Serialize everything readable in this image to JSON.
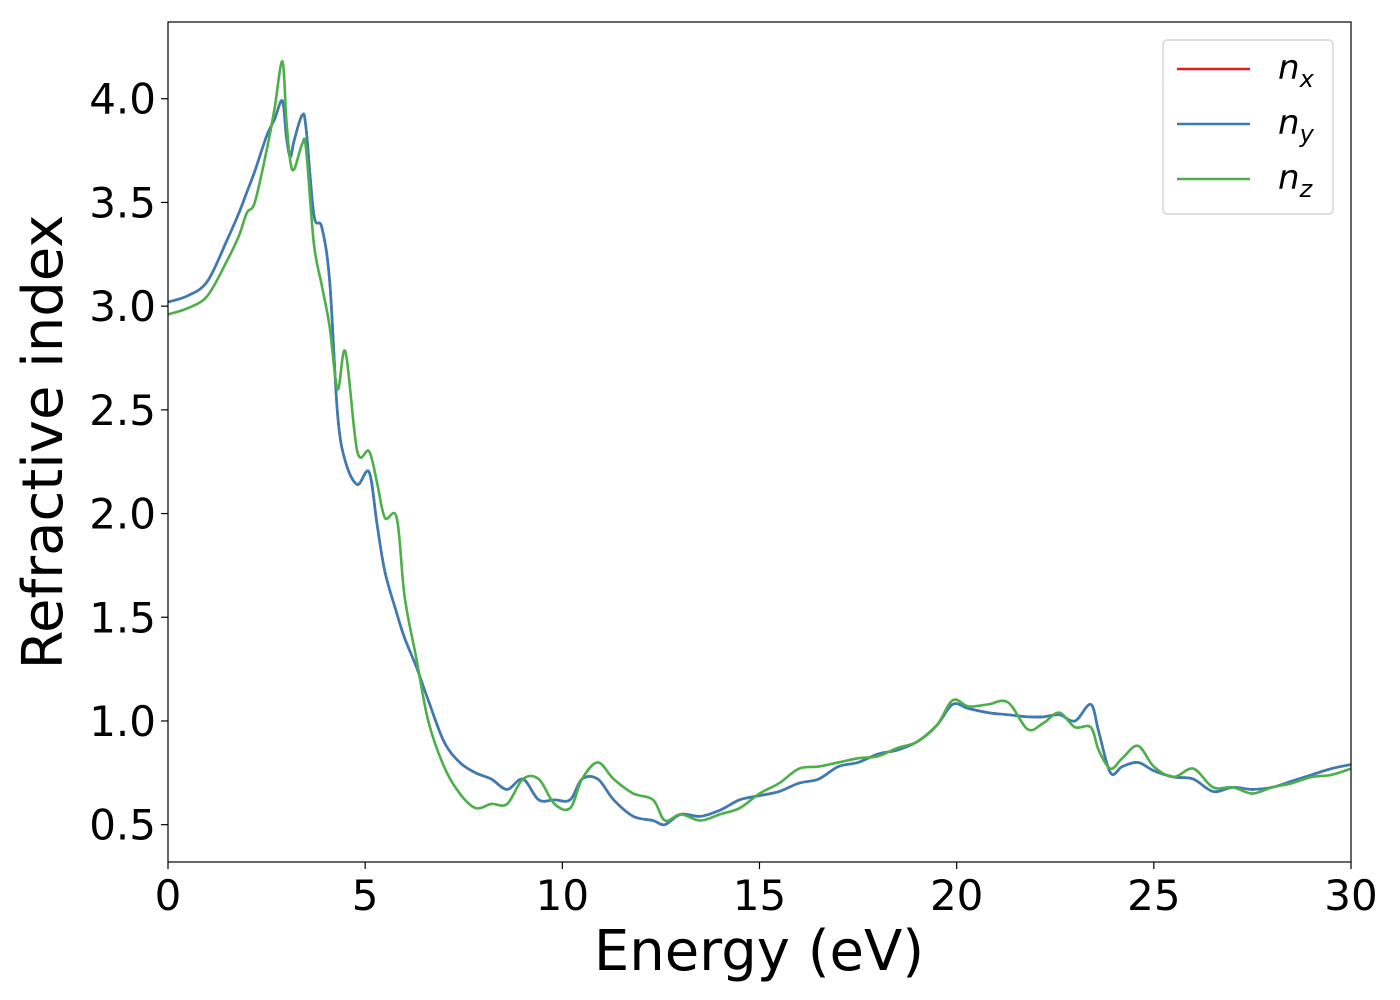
{
  "chart_data": {
    "type": "line",
    "xlabel": "Energy (eV)",
    "ylabel": "Refractive index",
    "xlim": [
      0,
      30
    ],
    "ylim": [
      0.32,
      4.37
    ],
    "xticks": [
      0,
      5,
      10,
      15,
      20,
      25,
      30
    ],
    "xtick_labels": [
      "0",
      "5",
      "10",
      "15",
      "20",
      "25",
      "30"
    ],
    "yticks": [
      0.5,
      1.0,
      1.5,
      2.0,
      2.5,
      3.0,
      3.5,
      4.0
    ],
    "ytick_labels": [
      "0.5",
      "1.0",
      "1.5",
      "2.0",
      "2.5",
      "3.0",
      "3.5",
      "4.0"
    ],
    "grid": false,
    "legend_position": "top-right",
    "series": [
      {
        "name": "n_x",
        "legend_base": "n",
        "legend_sub": "x",
        "color": "#e41a1c",
        "x": [
          0,
          0.5,
          1.0,
          1.5,
          1.8,
          2.0,
          2.2,
          2.5,
          2.7,
          2.9,
          3.0,
          3.1,
          3.2,
          3.4,
          3.5,
          3.7,
          3.9,
          4.1,
          4.3,
          4.5,
          4.8,
          5.1,
          5.3,
          5.5,
          5.8,
          6.0,
          6.3,
          6.6,
          7.0,
          7.4,
          7.8,
          8.2,
          8.6,
          9.0,
          9.4,
          9.8,
          10.2,
          10.5,
          10.9,
          11.3,
          11.8,
          12.3,
          12.6,
          13.0,
          13.5,
          14.0,
          14.5,
          15.0,
          15.5,
          16.0,
          16.5,
          17.0,
          17.5,
          18.0,
          18.5,
          19.0,
          19.5,
          19.9,
          20.3,
          20.8,
          21.3,
          21.8,
          22.2,
          22.6,
          23.0,
          23.4,
          23.6,
          23.9,
          24.2,
          24.6,
          25.0,
          25.5,
          26.0,
          26.5,
          27.0,
          27.5,
          28.0,
          28.5,
          29.0,
          29.5,
          30.0
        ],
        "values": [
          3.02,
          3.05,
          3.12,
          3.32,
          3.45,
          3.55,
          3.65,
          3.82,
          3.9,
          3.99,
          3.82,
          3.72,
          3.8,
          3.92,
          3.86,
          3.44,
          3.38,
          3.12,
          2.48,
          2.25,
          2.14,
          2.2,
          1.95,
          1.72,
          1.52,
          1.4,
          1.26,
          1.1,
          0.9,
          0.8,
          0.75,
          0.72,
          0.67,
          0.72,
          0.62,
          0.62,
          0.62,
          0.72,
          0.72,
          0.62,
          0.54,
          0.52,
          0.5,
          0.55,
          0.54,
          0.57,
          0.62,
          0.64,
          0.66,
          0.7,
          0.72,
          0.78,
          0.8,
          0.84,
          0.86,
          0.9,
          0.98,
          1.08,
          1.06,
          1.04,
          1.03,
          1.02,
          1.02,
          1.03,
          1.0,
          1.08,
          0.95,
          0.75,
          0.78,
          0.8,
          0.76,
          0.73,
          0.72,
          0.66,
          0.68,
          0.67,
          0.68,
          0.71,
          0.74,
          0.77,
          0.79
        ]
      },
      {
        "name": "n_y",
        "legend_base": "n",
        "legend_sub": "y",
        "color": "#377eb8",
        "x": [
          0,
          0.5,
          1.0,
          1.5,
          1.8,
          2.0,
          2.2,
          2.5,
          2.7,
          2.9,
          3.0,
          3.1,
          3.2,
          3.4,
          3.5,
          3.7,
          3.9,
          4.1,
          4.3,
          4.5,
          4.8,
          5.1,
          5.3,
          5.5,
          5.8,
          6.0,
          6.3,
          6.6,
          7.0,
          7.4,
          7.8,
          8.2,
          8.6,
          9.0,
          9.4,
          9.8,
          10.2,
          10.5,
          10.9,
          11.3,
          11.8,
          12.3,
          12.6,
          13.0,
          13.5,
          14.0,
          14.5,
          15.0,
          15.5,
          16.0,
          16.5,
          17.0,
          17.5,
          18.0,
          18.5,
          19.0,
          19.5,
          19.9,
          20.3,
          20.8,
          21.3,
          21.8,
          22.2,
          22.6,
          23.0,
          23.4,
          23.6,
          23.9,
          24.2,
          24.6,
          25.0,
          25.5,
          26.0,
          26.5,
          27.0,
          27.5,
          28.0,
          28.5,
          29.0,
          29.5,
          30.0
        ],
        "values": [
          3.02,
          3.05,
          3.12,
          3.32,
          3.45,
          3.55,
          3.65,
          3.82,
          3.9,
          3.99,
          3.82,
          3.72,
          3.8,
          3.92,
          3.86,
          3.44,
          3.38,
          3.12,
          2.48,
          2.25,
          2.14,
          2.2,
          1.95,
          1.72,
          1.52,
          1.4,
          1.26,
          1.1,
          0.9,
          0.8,
          0.75,
          0.72,
          0.67,
          0.72,
          0.62,
          0.62,
          0.62,
          0.72,
          0.72,
          0.62,
          0.54,
          0.52,
          0.5,
          0.55,
          0.54,
          0.57,
          0.62,
          0.64,
          0.66,
          0.7,
          0.72,
          0.78,
          0.8,
          0.84,
          0.86,
          0.9,
          0.98,
          1.08,
          1.06,
          1.04,
          1.03,
          1.02,
          1.02,
          1.03,
          1.0,
          1.08,
          0.95,
          0.75,
          0.78,
          0.8,
          0.76,
          0.73,
          0.72,
          0.66,
          0.68,
          0.67,
          0.68,
          0.71,
          0.74,
          0.77,
          0.79
        ]
      },
      {
        "name": "n_z",
        "legend_base": "n",
        "legend_sub": "z",
        "color": "#4daf4a",
        "x": [
          0,
          0.5,
          1.0,
          1.5,
          1.8,
          2.0,
          2.2,
          2.5,
          2.7,
          2.9,
          3.0,
          3.1,
          3.2,
          3.4,
          3.5,
          3.7,
          3.9,
          4.1,
          4.3,
          4.5,
          4.8,
          5.1,
          5.3,
          5.5,
          5.8,
          6.0,
          6.3,
          6.6,
          7.0,
          7.4,
          7.8,
          8.2,
          8.6,
          9.0,
          9.4,
          9.8,
          10.2,
          10.5,
          10.9,
          11.3,
          11.8,
          12.3,
          12.6,
          13.0,
          13.5,
          14.0,
          14.5,
          15.0,
          15.5,
          16.0,
          16.5,
          17.0,
          17.5,
          18.0,
          18.5,
          19.0,
          19.5,
          19.9,
          20.3,
          20.8,
          21.3,
          21.8,
          22.2,
          22.6,
          23.0,
          23.4,
          23.6,
          23.9,
          24.2,
          24.6,
          25.0,
          25.5,
          26.0,
          26.5,
          27.0,
          27.5,
          28.0,
          28.5,
          29.0,
          29.5,
          30.0
        ],
        "values": [
          2.96,
          2.99,
          3.05,
          3.22,
          3.34,
          3.45,
          3.5,
          3.75,
          3.95,
          4.18,
          3.9,
          3.7,
          3.66,
          3.78,
          3.76,
          3.3,
          3.1,
          2.9,
          2.6,
          2.78,
          2.3,
          2.3,
          2.15,
          1.98,
          1.98,
          1.6,
          1.3,
          1.0,
          0.78,
          0.65,
          0.58,
          0.6,
          0.6,
          0.72,
          0.72,
          0.6,
          0.58,
          0.72,
          0.8,
          0.72,
          0.65,
          0.62,
          0.52,
          0.55,
          0.52,
          0.55,
          0.58,
          0.65,
          0.7,
          0.77,
          0.78,
          0.8,
          0.82,
          0.83,
          0.87,
          0.9,
          0.98,
          1.1,
          1.07,
          1.08,
          1.09,
          0.96,
          0.99,
          1.04,
          0.97,
          0.97,
          0.86,
          0.77,
          0.82,
          0.88,
          0.78,
          0.73,
          0.77,
          0.68,
          0.68,
          0.65,
          0.68,
          0.7,
          0.73,
          0.74,
          0.77
        ]
      }
    ]
  }
}
